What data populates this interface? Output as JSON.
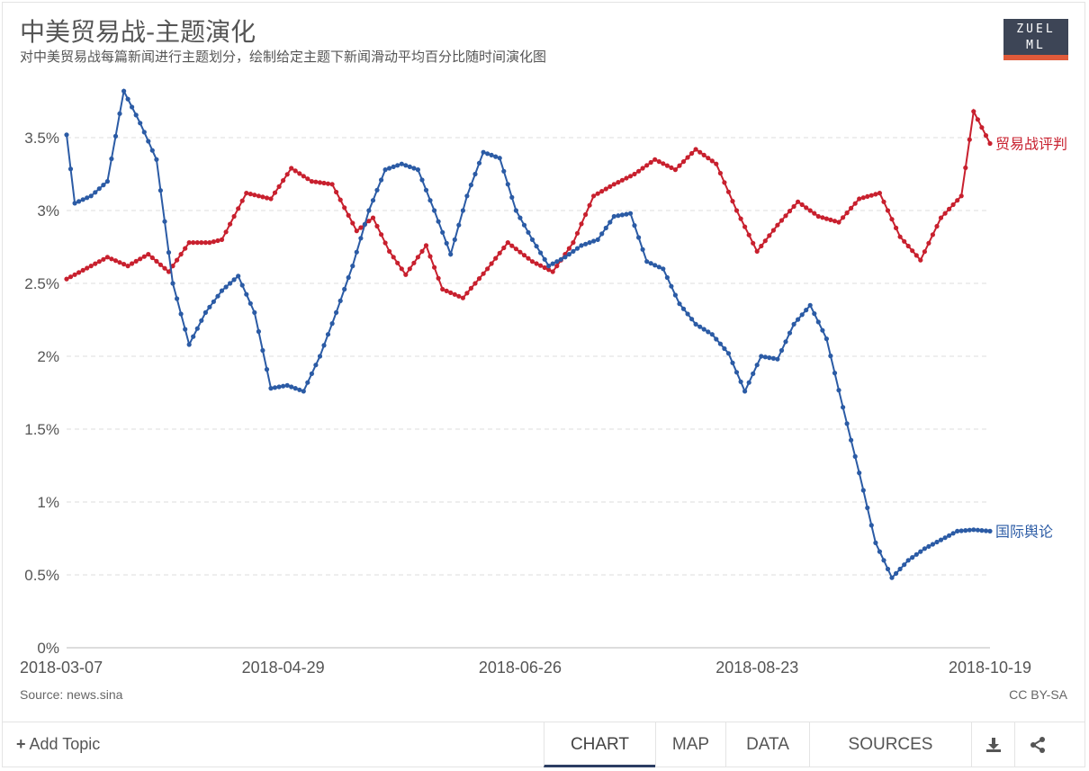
{
  "header": {
    "title": "中美贸易战-主题演化",
    "subtitle": "对中美贸易战每篇新闻进行主题划分，绘制给定主题下新闻滑动平均百分比随时间演化图",
    "logo_line1": "ZUEL",
    "logo_line2": "ML"
  },
  "footer_text": {
    "source": "Source: news.sina",
    "license": "CC BY-SA"
  },
  "controls": {
    "add_topic": "Add Topic",
    "tabs": [
      "CHART",
      "MAP",
      "DATA",
      "SOURCES"
    ],
    "active_tab": "CHART",
    "download_icon": "download-icon",
    "share_icon": "share-icon"
  },
  "chart_data": {
    "type": "line",
    "title": "中美贸易战-主题演化",
    "x_ticks": [
      "2018-03-07",
      "2018-04-29",
      "2018-06-26",
      "2018-08-23",
      "2018-10-19"
    ],
    "y_ticks": [
      "0%",
      "0.5%",
      "1%",
      "1.5%",
      "2%",
      "2.5%",
      "3%",
      "3.5%"
    ],
    "ylim": [
      0,
      3.5
    ],
    "grid": true,
    "legend": "direct labels at line ends",
    "x_range": [
      "2018-03-07",
      "2018-10-19"
    ],
    "series": [
      {
        "name": "贸易战评判",
        "color": "#c8202e",
        "x": [
          "2018-03-07",
          "2018-03-17",
          "2018-03-22",
          "2018-03-27",
          "2018-04-01",
          "2018-04-06",
          "2018-04-11",
          "2018-04-14",
          "2018-04-20",
          "2018-04-26",
          "2018-05-01",
          "2018-05-06",
          "2018-05-11",
          "2018-05-17",
          "2018-05-21",
          "2018-05-25",
          "2018-05-29",
          "2018-06-03",
          "2018-06-07",
          "2018-06-12",
          "2018-06-18",
          "2018-06-23",
          "2018-06-29",
          "2018-07-04",
          "2018-07-09",
          "2018-07-14",
          "2018-07-19",
          "2018-07-24",
          "2018-07-29",
          "2018-08-03",
          "2018-08-08",
          "2018-08-13",
          "2018-08-18",
          "2018-08-23",
          "2018-08-28",
          "2018-09-02",
          "2018-09-07",
          "2018-09-12",
          "2018-09-17",
          "2018-09-22",
          "2018-09-27",
          "2018-10-02",
          "2018-10-07",
          "2018-10-12",
          "2018-10-15",
          "2018-10-19"
        ],
        "values": [
          2.53,
          2.68,
          2.62,
          2.7,
          2.58,
          2.78,
          2.78,
          2.8,
          3.12,
          3.08,
          3.29,
          3.2,
          3.18,
          2.86,
          2.95,
          2.72,
          2.56,
          2.76,
          2.46,
          2.4,
          2.6,
          2.78,
          2.65,
          2.58,
          2.78,
          3.1,
          3.18,
          3.25,
          3.35,
          3.28,
          3.42,
          3.32,
          3.0,
          2.72,
          2.9,
          3.06,
          2.96,
          2.92,
          3.08,
          3.12,
          2.82,
          2.66,
          2.95,
          3.1,
          3.68,
          3.46
        ]
      },
      {
        "name": "国际舆论",
        "color": "#2b5ba5",
        "x": [
          "2018-03-07",
          "2018-03-09",
          "2018-03-13",
          "2018-03-17",
          "2018-03-21",
          "2018-03-25",
          "2018-03-29",
          "2018-04-02",
          "2018-04-06",
          "2018-04-10",
          "2018-04-14",
          "2018-04-18",
          "2018-04-22",
          "2018-04-26",
          "2018-04-30",
          "2018-05-04",
          "2018-05-08",
          "2018-05-12",
          "2018-05-16",
          "2018-05-20",
          "2018-05-24",
          "2018-05-28",
          "2018-06-01",
          "2018-06-05",
          "2018-06-09",
          "2018-06-13",
          "2018-06-17",
          "2018-06-21",
          "2018-06-25",
          "2018-06-29",
          "2018-07-03",
          "2018-07-07",
          "2018-07-11",
          "2018-07-15",
          "2018-07-19",
          "2018-07-23",
          "2018-07-27",
          "2018-07-31",
          "2018-08-04",
          "2018-08-08",
          "2018-08-12",
          "2018-08-16",
          "2018-08-20",
          "2018-08-24",
          "2018-08-28",
          "2018-09-01",
          "2018-09-05",
          "2018-09-09",
          "2018-09-13",
          "2018-09-17",
          "2018-09-21",
          "2018-09-25",
          "2018-09-29",
          "2018-10-03",
          "2018-10-07",
          "2018-10-11",
          "2018-10-15",
          "2018-10-19"
        ],
        "values": [
          3.52,
          3.05,
          3.1,
          3.2,
          3.82,
          3.6,
          3.35,
          2.5,
          2.08,
          2.3,
          2.45,
          2.55,
          2.3,
          1.78,
          1.8,
          1.76,
          2.0,
          2.3,
          2.62,
          3.0,
          3.28,
          3.32,
          3.28,
          3.0,
          2.7,
          3.1,
          3.4,
          3.36,
          3.0,
          2.8,
          2.62,
          2.68,
          2.76,
          2.8,
          2.96,
          2.98,
          2.65,
          2.6,
          2.36,
          2.22,
          2.15,
          2.02,
          1.76,
          2.0,
          1.98,
          2.22,
          2.35,
          2.12,
          1.65,
          1.2,
          0.72,
          0.48,
          0.6,
          0.68,
          0.74,
          0.8,
          0.81,
          0.8
        ]
      }
    ]
  }
}
